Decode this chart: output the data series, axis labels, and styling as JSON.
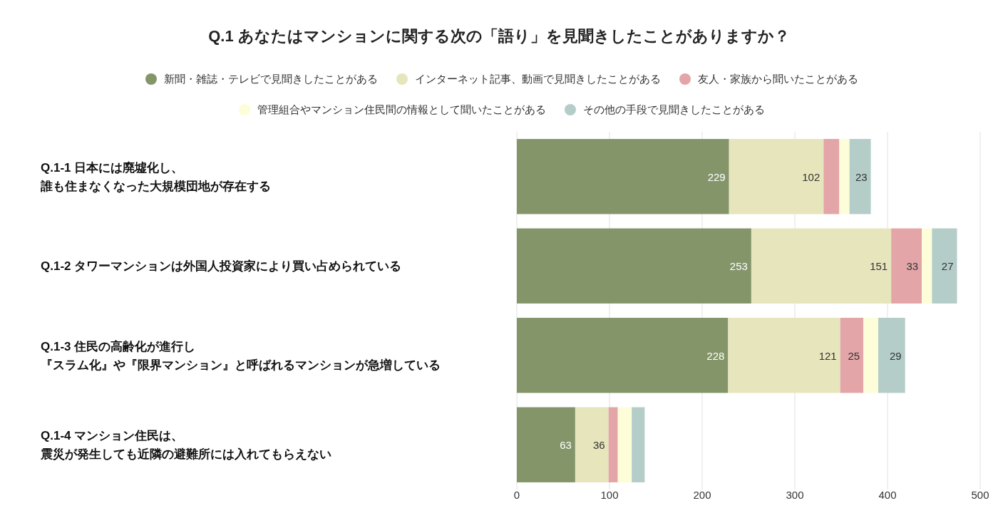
{
  "chart_data": {
    "type": "bar",
    "orientation": "horizontal",
    "stacked": true,
    "title": "Q.1 あなたはマンションに関する次の「語り」を見聞きしたことがありますか？",
    "categories": [
      "Q.1-1 日本には廃墟化し、誰も住まなくなった大規模団地が存在する",
      "Q.1-2 タワーマンションは外国人投資家により買い占められている",
      "Q.1-3 住民の高齢化が進行し『スラム化』や『限界マンション』と呼ばれるマンションが急増している",
      "Q.1-4 マンション住民は、震災が発生しても近隣の避難所には入れてもらえない"
    ],
    "series": [
      {
        "name": "新聞・雑誌・テレビで見聞きしたことがある",
        "color": "#84956a",
        "values": [
          229,
          253,
          228,
          63
        ],
        "value_labels": [
          "229",
          "253",
          "228",
          "63"
        ]
      },
      {
        "name": "インターネット記事、動画で見聞きしたことがある",
        "color": "#e6e5bc",
        "values": [
          102,
          151,
          121,
          36
        ],
        "value_labels": [
          "102",
          "151",
          "121",
          "36"
        ]
      },
      {
        "name": "友人・家族から聞いたことがある",
        "color": "#e3a5a7",
        "values": [
          17,
          33,
          25,
          10
        ],
        "value_labels": [
          null,
          "33",
          "25",
          null
        ]
      },
      {
        "name": "管理組合やマンション住民間の情報として聞いたことがある",
        "color": "#fdfdd9",
        "values": [
          11,
          11,
          16,
          15
        ],
        "value_labels": [
          null,
          null,
          null,
          null
        ]
      },
      {
        "name": "その他の手段で見聞きしたことがある",
        "color": "#b4cdc8",
        "values": [
          23,
          27,
          29,
          14
        ],
        "value_labels": [
          "23",
          "27",
          "29",
          null
        ]
      }
    ],
    "xlim": [
      0,
      500
    ],
    "xticks": [
      0,
      100,
      200,
      300,
      400,
      500
    ],
    "grid": "x",
    "legend": "top"
  }
}
